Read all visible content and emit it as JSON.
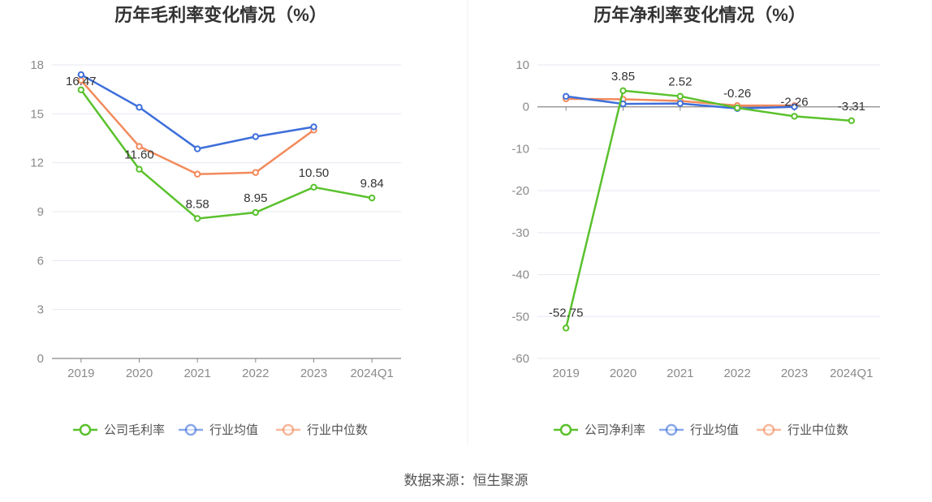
{
  "source_text": "数据来源：恒生聚源",
  "colors": {
    "company": "#5ac12d",
    "industry_avg": "#3d6fdb",
    "industry_median": "#f28a5c"
  },
  "chart_data": [
    {
      "type": "line",
      "title": "历年毛利率变化情况（%）",
      "categories": [
        "2019",
        "2020",
        "2021",
        "2022",
        "2023",
        "2024Q1"
      ],
      "ylim": [
        0,
        18
      ],
      "yticks": [
        0,
        3,
        6,
        9,
        12,
        15,
        18
      ],
      "grid": true,
      "legend_position": "bottom",
      "series": [
        {
          "name": "公司毛利率",
          "values": [
            16.47,
            11.6,
            8.58,
            8.95,
            10.5,
            9.84
          ],
          "labels": [
            "16.47",
            "11.60",
            "8.58",
            "8.95",
            "10.50",
            "9.84"
          ]
        },
        {
          "name": "行业均值",
          "values": [
            17.4,
            15.4,
            12.85,
            13.6,
            14.2,
            null
          ]
        },
        {
          "name": "行业中位数",
          "values": [
            17.05,
            13.0,
            11.3,
            11.4,
            14.0,
            null
          ]
        }
      ]
    },
    {
      "type": "line",
      "title": "历年净利率变化情况（%）",
      "categories": [
        "2019",
        "2020",
        "2021",
        "2022",
        "2023",
        "2024Q1"
      ],
      "ylim": [
        -60,
        10
      ],
      "yticks": [
        -60,
        -50,
        -40,
        -30,
        -20,
        -10,
        0,
        10
      ],
      "grid": true,
      "legend_position": "bottom",
      "series": [
        {
          "name": "公司净利率",
          "values": [
            -52.75,
            3.85,
            2.52,
            -0.26,
            -2.26,
            -3.31
          ],
          "labels": [
            "-52.75",
            "3.85",
            "2.52",
            "-0.26",
            "-2.26",
            "-3.31"
          ]
        },
        {
          "name": "行业均值",
          "values": [
            2.5,
            0.7,
            0.8,
            -0.4,
            0.0,
            null
          ]
        },
        {
          "name": "行业中位数",
          "values": [
            1.9,
            1.8,
            1.4,
            0.3,
            0.3,
            null
          ]
        }
      ]
    }
  ]
}
